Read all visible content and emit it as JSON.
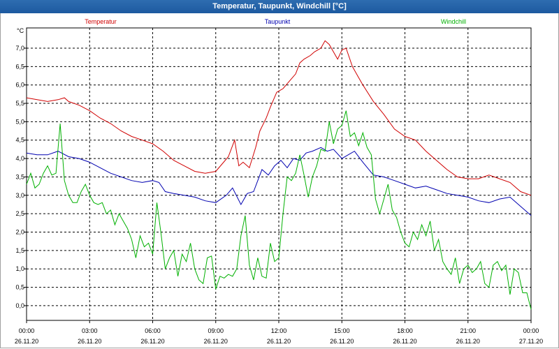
{
  "window": {
    "title": "Temperatur, Taupunkt, Windchill [°C]"
  },
  "chart_data": {
    "type": "line",
    "title": "Temperatur, Taupunkt, Windchill [°C]",
    "ylabel": "°C",
    "ylim": [
      -0.4,
      7.55
    ],
    "y_ticks": [
      "7,0",
      "6,5",
      "6,0",
      "5,5",
      "5,0",
      "4,5",
      "4,0",
      "3,5",
      "3,0",
      "2,5",
      "2,0",
      "1,5",
      "1,0",
      "0,5",
      "0,0"
    ],
    "x_ticks": [
      {
        "time": "00:00",
        "date": "26.11.20"
      },
      {
        "time": "03:00",
        "date": "26.11.20"
      },
      {
        "time": "06:00",
        "date": "26.11.20"
      },
      {
        "time": "09:00",
        "date": "26.11.20"
      },
      {
        "time": "12:00",
        "date": "26.11.20"
      },
      {
        "time": "15:00",
        "date": "26.11.20"
      },
      {
        "time": "18:00",
        "date": "26.11.20"
      },
      {
        "time": "21:00",
        "date": "26.11.20"
      },
      {
        "time": "00:00",
        "date": "27.11.20"
      }
    ],
    "grid": true,
    "series": [
      {
        "name": "Temperatur",
        "color": "#d00000",
        "x_hours": [
          0,
          0.5,
          1,
          1.5,
          1.8,
          2,
          2.5,
          3,
          3.5,
          4,
          4.5,
          5,
          5.5,
          6,
          6.5,
          7,
          7.5,
          8,
          8.5,
          9,
          9.3,
          9.6,
          9.9,
          10.1,
          10.3,
          10.6,
          10.9,
          11.1,
          11.4,
          11.6,
          11.9,
          12.2,
          12.5,
          12.8,
          13.0,
          13.2,
          13.5,
          13.7,
          14.0,
          14.2,
          14.4,
          14.6,
          14.8,
          15.0,
          15.2,
          15.5,
          15.8,
          16.0,
          16.5,
          17.0,
          17.5,
          18.0,
          18.5,
          19.0,
          19.5,
          20.0,
          20.5,
          21.0,
          21.5,
          22.0,
          22.5,
          23.0,
          23.5,
          24.0
        ],
        "values": [
          5.65,
          5.6,
          5.55,
          5.6,
          5.65,
          5.55,
          5.45,
          5.3,
          5.1,
          4.95,
          4.75,
          4.6,
          4.5,
          4.4,
          4.2,
          3.95,
          3.8,
          3.65,
          3.6,
          3.65,
          3.85,
          4.05,
          4.5,
          3.8,
          3.9,
          3.75,
          4.3,
          4.75,
          5.1,
          5.4,
          5.8,
          5.9,
          6.1,
          6.3,
          6.6,
          6.7,
          6.8,
          6.9,
          7.0,
          7.2,
          7.1,
          6.9,
          6.7,
          6.95,
          7.0,
          6.5,
          6.2,
          6.0,
          5.55,
          5.2,
          4.8,
          4.6,
          4.5,
          4.2,
          3.95,
          3.7,
          3.5,
          3.45,
          3.45,
          3.55,
          3.45,
          3.35,
          3.1,
          3.0
        ]
      },
      {
        "name": "Taupunkt",
        "color": "#0000b0",
        "x_hours": [
          0,
          0.5,
          1,
          1.5,
          2,
          2.5,
          3,
          3.5,
          4,
          4.5,
          5,
          5.5,
          6,
          6.3,
          6.6,
          7,
          7.5,
          8,
          8.5,
          9,
          9.5,
          9.8,
          10.2,
          10.5,
          10.8,
          11.2,
          11.5,
          11.8,
          12.1,
          12.4,
          12.7,
          13.0,
          13.3,
          13.6,
          14.0,
          14.3,
          14.6,
          15.0,
          15.3,
          15.6,
          16.0,
          16.5,
          17.0,
          17.5,
          18.0,
          18.5,
          19.0,
          19.5,
          20.0,
          20.5,
          21.0,
          21.5,
          22.0,
          22.5,
          23.0,
          23.5,
          24.0
        ],
        "values": [
          4.15,
          4.1,
          4.1,
          4.2,
          4.05,
          4.0,
          3.9,
          3.75,
          3.6,
          3.5,
          3.4,
          3.35,
          3.4,
          3.35,
          3.1,
          3.05,
          3.0,
          2.95,
          2.85,
          2.8,
          3.0,
          3.2,
          2.75,
          3.05,
          3.1,
          3.7,
          3.55,
          3.8,
          3.95,
          3.75,
          4.0,
          3.95,
          4.15,
          4.2,
          4.3,
          4.2,
          4.25,
          4.0,
          4.1,
          4.2,
          3.9,
          3.55,
          3.5,
          3.4,
          3.3,
          3.2,
          3.25,
          3.15,
          3.05,
          3.0,
          2.95,
          2.85,
          2.8,
          2.9,
          2.95,
          2.7,
          2.45
        ]
      },
      {
        "name": "Windchill",
        "color": "#00b000",
        "x_hours": [
          0,
          0.2,
          0.4,
          0.6,
          0.8,
          1.0,
          1.2,
          1.4,
          1.6,
          1.8,
          2.0,
          2.2,
          2.4,
          2.6,
          2.8,
          3.0,
          3.2,
          3.4,
          3.6,
          3.8,
          4.0,
          4.2,
          4.4,
          4.6,
          4.8,
          5.0,
          5.2,
          5.4,
          5.6,
          5.8,
          6.0,
          6.2,
          6.4,
          6.6,
          6.8,
          7.0,
          7.2,
          7.4,
          7.6,
          7.8,
          8.0,
          8.2,
          8.4,
          8.6,
          8.8,
          9.0,
          9.2,
          9.4,
          9.6,
          9.8,
          10.0,
          10.2,
          10.4,
          10.6,
          10.8,
          11.0,
          11.2,
          11.4,
          11.6,
          11.8,
          12.0,
          12.2,
          12.4,
          12.6,
          12.8,
          13.0,
          13.2,
          13.4,
          13.6,
          13.8,
          14.0,
          14.2,
          14.4,
          14.6,
          14.8,
          15.0,
          15.2,
          15.4,
          15.6,
          15.8,
          16.0,
          16.2,
          16.4,
          16.6,
          16.8,
          17.0,
          17.2,
          17.4,
          17.6,
          17.8,
          18.0,
          18.2,
          18.4,
          18.6,
          18.8,
          19.0,
          19.2,
          19.4,
          19.6,
          19.8,
          20.0,
          20.2,
          20.4,
          20.6,
          20.8,
          21.0,
          21.2,
          21.4,
          21.6,
          21.8,
          22.0,
          22.2,
          22.4,
          22.6,
          22.8,
          23.0,
          23.2,
          23.4,
          23.6,
          23.8,
          24.0
        ],
        "values": [
          3.3,
          3.6,
          3.2,
          3.3,
          3.6,
          3.8,
          3.55,
          3.6,
          4.95,
          3.4,
          3.0,
          2.8,
          2.8,
          3.1,
          3.3,
          3.0,
          2.8,
          2.75,
          2.8,
          2.5,
          2.6,
          2.2,
          2.5,
          2.3,
          2.1,
          1.8,
          1.3,
          1.9,
          1.6,
          1.7,
          1.4,
          2.8,
          1.95,
          1.0,
          1.3,
          1.5,
          0.8,
          1.4,
          1.2,
          1.7,
          1.0,
          0.7,
          0.6,
          1.3,
          1.35,
          0.45,
          0.8,
          0.75,
          0.85,
          0.8,
          1.0,
          1.9,
          2.45,
          1.1,
          0.7,
          1.3,
          0.8,
          0.75,
          1.7,
          1.2,
          1.3,
          2.5,
          3.5,
          3.4,
          3.6,
          4.1,
          3.55,
          2.95,
          3.5,
          3.8,
          4.25,
          4.2,
          5.0,
          4.4,
          4.8,
          4.9,
          5.3,
          4.6,
          4.7,
          4.35,
          4.7,
          4.3,
          4.1,
          2.9,
          2.5,
          2.9,
          3.3,
          2.6,
          2.4,
          2.0,
          1.7,
          1.6,
          2.0,
          1.8,
          2.2,
          1.9,
          2.3,
          1.5,
          1.8,
          1.2,
          1.0,
          0.85,
          1.3,
          0.6,
          1.0,
          1.1,
          0.9,
          1.0,
          1.2,
          0.6,
          0.5,
          1.1,
          1.2,
          0.95,
          1.1,
          0.3,
          1.0,
          0.9,
          0.35,
          0.35,
          -0.1
        ]
      }
    ]
  }
}
